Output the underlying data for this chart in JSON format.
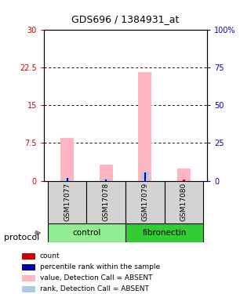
{
  "title": "GDS696 / 1384931_at",
  "samples": [
    "GSM17077",
    "GSM17078",
    "GSM17079",
    "GSM17080"
  ],
  "bar_positions": [
    0,
    1,
    2,
    3
  ],
  "value_absent": [
    8.5,
    3.2,
    21.5,
    2.5
  ],
  "rank_absent": [
    1.8,
    1.2,
    5.8,
    0.0
  ],
  "count_red": [
    0.18,
    0.18,
    0.18,
    0.18
  ],
  "rank_blue": [
    1.7,
    1.0,
    5.5,
    0.0
  ],
  "ylim_left": [
    0,
    30
  ],
  "ylim_right": [
    0,
    100
  ],
  "yticks_left": [
    0,
    7.5,
    15,
    22.5,
    30
  ],
  "yticks_right": [
    0,
    25,
    50,
    75,
    100
  ],
  "ytick_labels_left": [
    "0",
    "7.5",
    "15",
    "22.5",
    "30"
  ],
  "ytick_labels_right": [
    "0",
    "25",
    "50",
    "75",
    "100%"
  ],
  "left_color": "#CC0000",
  "right_color": "#0000CC",
  "pink_color": "#FFB6C1",
  "lightblue_color": "#B0C8E8",
  "red_color": "#CC0000",
  "blue_color": "#0000AA",
  "sample_area_color": "#D3D3D3",
  "control_color": "#90EE90",
  "fibronectin_color": "#32CD32",
  "legend_items": [
    {
      "color": "#CC0000",
      "label": "count"
    },
    {
      "color": "#0000AA",
      "label": "percentile rank within the sample"
    },
    {
      "color": "#FFB6C1",
      "label": "value, Detection Call = ABSENT"
    },
    {
      "color": "#B0C8E8",
      "label": "rank, Detection Call = ABSENT"
    }
  ]
}
